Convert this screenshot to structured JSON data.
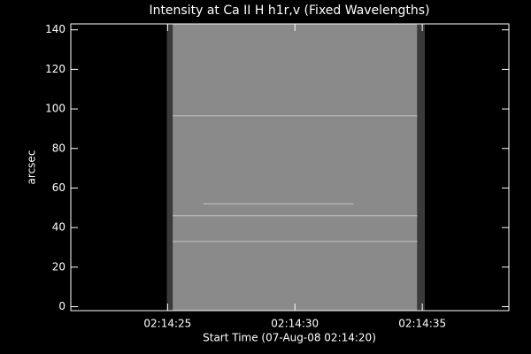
{
  "chart_data": {
    "type": "image",
    "title": "Intensity at Ca II H h1r,v (Fixed Wavelengths)",
    "xlabel": "Start Time (07-Aug-08 02:14:20)",
    "ylabel": "arcsec",
    "xlim": [
      21.2,
      38.4
    ],
    "xticks": [
      {
        "value": 25,
        "label": "02:14:25"
      },
      {
        "value": 30,
        "label": "02:14:30"
      },
      {
        "value": 35,
        "label": "02:14:35"
      }
    ],
    "ylim": [
      -2,
      143
    ],
    "yticks": [
      0,
      20,
      40,
      60,
      80,
      100,
      120,
      140
    ],
    "bands": [
      {
        "x": [
          24.97,
          25.2
        ],
        "color": "#3a3a3a"
      },
      {
        "x": [
          25.2,
          34.8
        ],
        "color": "#8a8a8a"
      },
      {
        "x": [
          34.8,
          35.1
        ],
        "color": "#3a3a3a"
      }
    ],
    "streak_color": "#b8b8b8",
    "streaks": [
      {
        "y": 96.5,
        "x": [
          25.2,
          34.8
        ]
      },
      {
        "y": 52,
        "x": [
          26.4,
          32.3
        ]
      },
      {
        "y": 46,
        "x": [
          25.2,
          34.8
        ]
      },
      {
        "y": 33,
        "x": [
          25.2,
          34.8
        ]
      }
    ]
  }
}
